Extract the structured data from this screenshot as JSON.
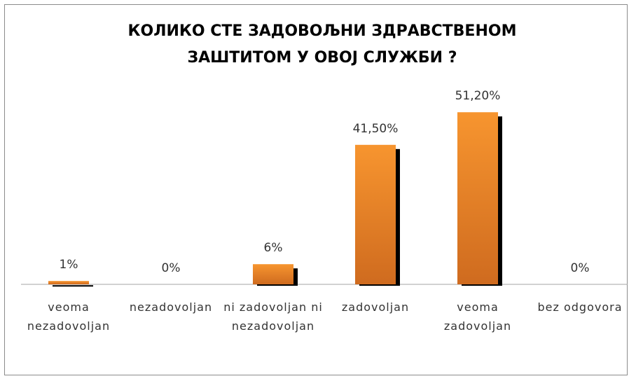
{
  "chart_data": {
    "type": "bar",
    "title": "КОЛИКО СТЕ ЗАДОВОЉНИ ЗДРАВСТВЕНОМ ЗАШТИТОМ У ОВОЈ СЛУЖБИ ?",
    "categories": [
      "veoma nezadovoljan",
      "nezadovoljan",
      "ni zadovoljan ni nezadovoljan",
      "zadovoljan",
      "veoma zadovoljan",
      "bez odgovora"
    ],
    "values": [
      1,
      0,
      6,
      41.5,
      51.2,
      0
    ],
    "value_labels": [
      "1%",
      "0%",
      "6%",
      "41,50%",
      "51,20%",
      "0%"
    ],
    "color": "#f7952f",
    "ylim": [
      0,
      60
    ]
  }
}
